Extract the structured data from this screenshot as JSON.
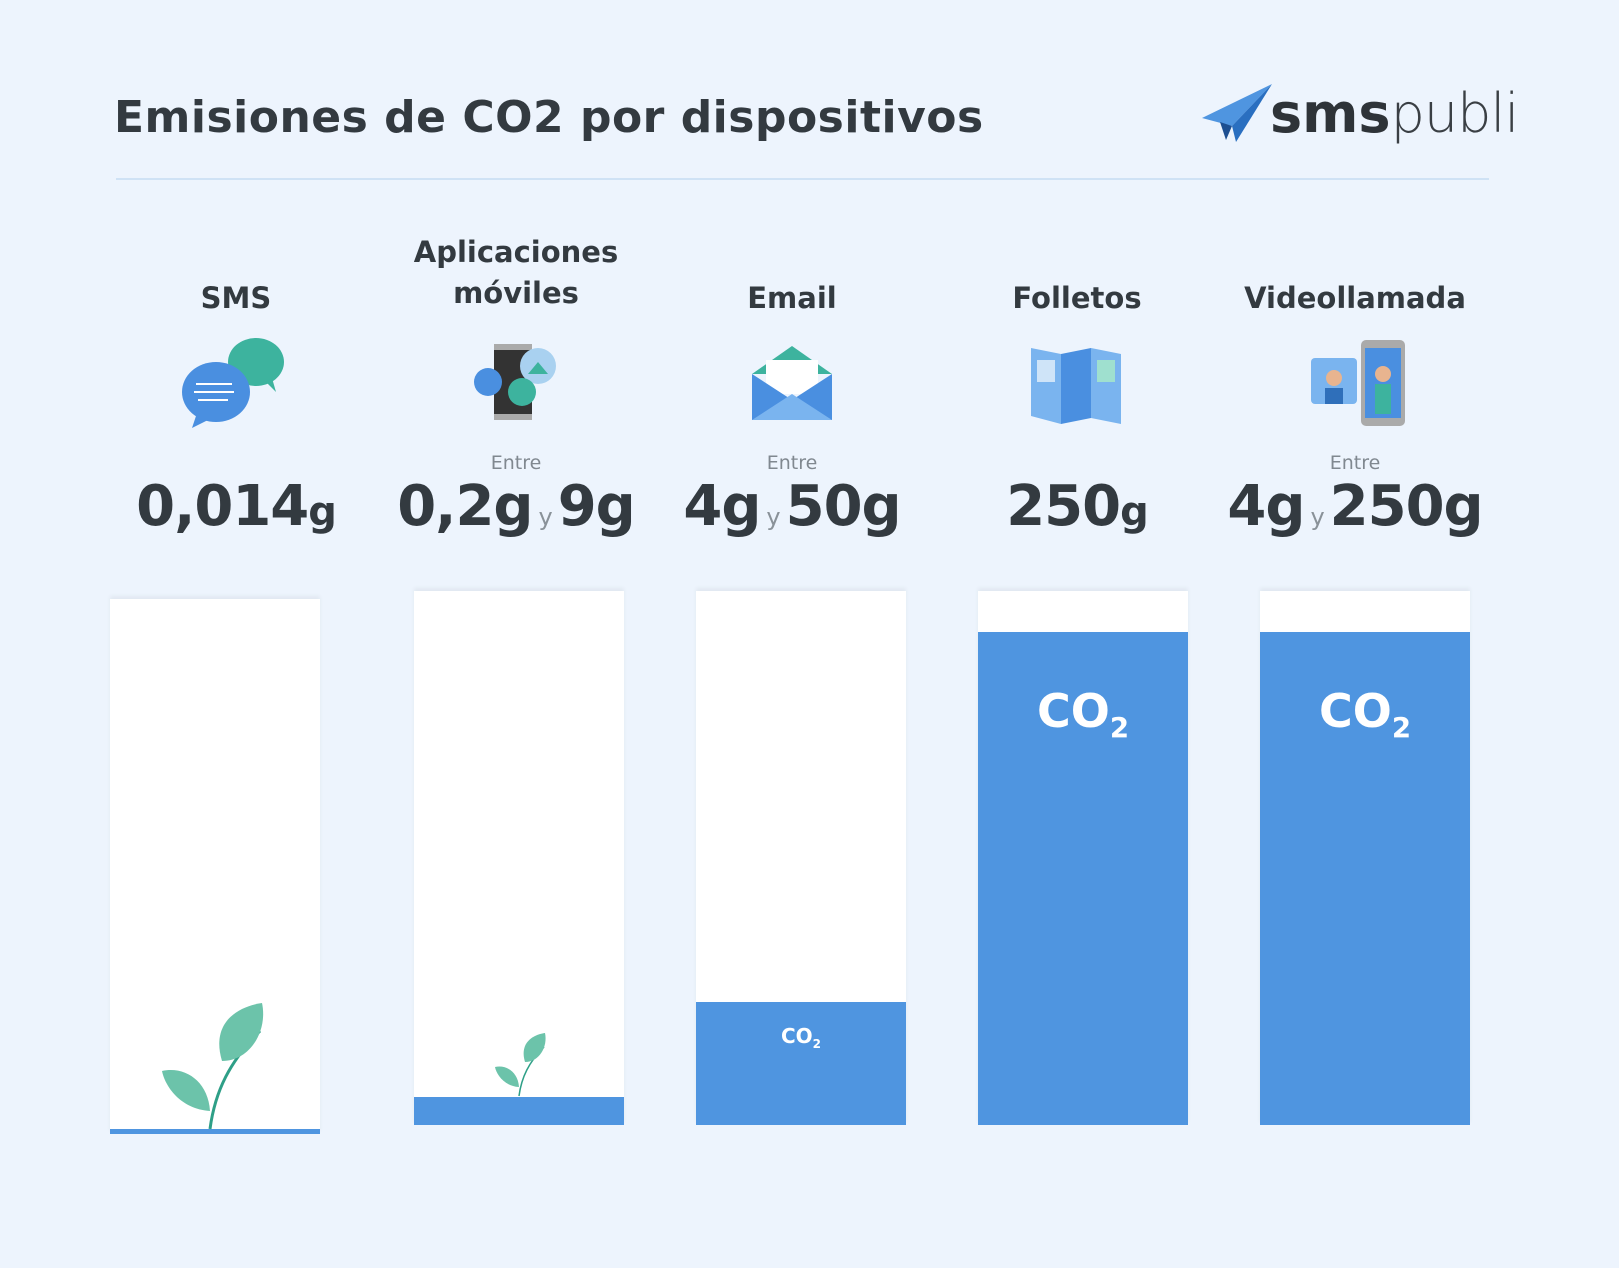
{
  "header": {
    "title": "Emisiones de CO2 por dispositivos",
    "logo": {
      "bold": "sms",
      "light": "publi"
    }
  },
  "co2_label": {
    "main": "CO",
    "sub": "2"
  },
  "items": [
    {
      "label": "SMS",
      "value": "0,014",
      "unit": "g"
    },
    {
      "label": "Aplicaciones móviles",
      "prefix": "Entre",
      "from": "0,2g",
      "joiner": "y",
      "to": "9g"
    },
    {
      "label": "Email",
      "prefix": "Entre",
      "from": "4g",
      "joiner": "y",
      "to": "50g"
    },
    {
      "label": "Folletos",
      "value": "250",
      "unit": "g"
    },
    {
      "label": "Videollamada",
      "prefix": "Entre",
      "from": "4g",
      "joiner": "y",
      "to": "250g"
    }
  ]
}
